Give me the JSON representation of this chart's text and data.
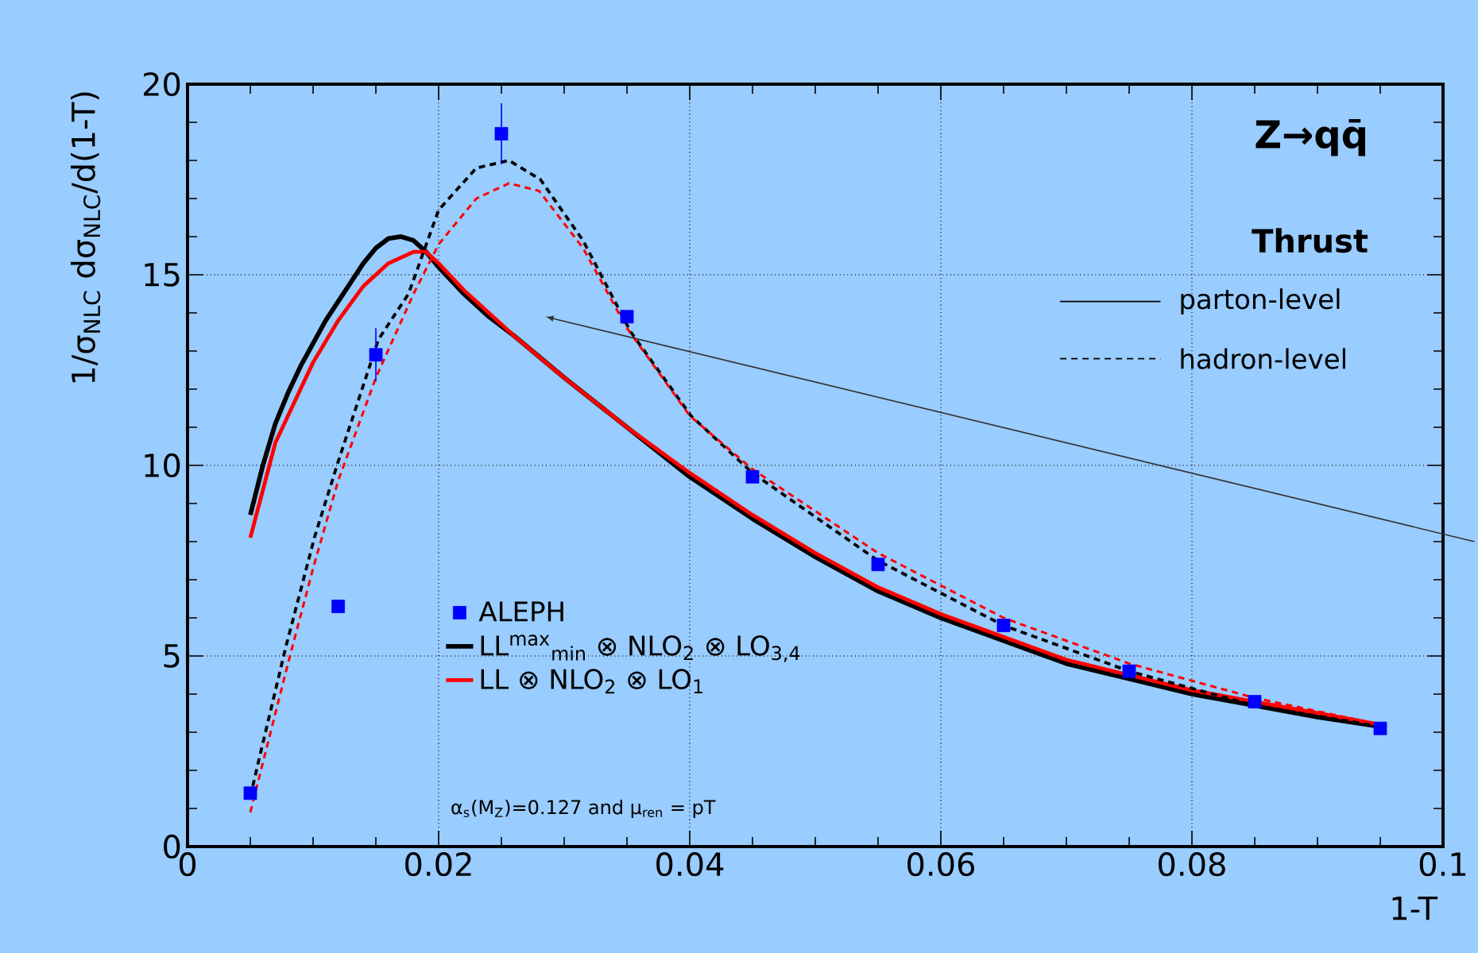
{
  "chart_data": {
    "type": "line",
    "title": "Z→qq̄",
    "subtitle": "Thrust",
    "xlabel": "1-T",
    "ylabel": "1/σ$_{NLC}$ dσ$_{NLC}$/d(1-T)",
    "xlim": [
      0,
      0.1
    ],
    "ylim": [
      0,
      20
    ],
    "xticks": [
      0,
      0.02,
      0.04,
      0.06,
      0.08,
      0.1
    ],
    "yticks": [
      0,
      5,
      10,
      15,
      20
    ],
    "grid": true,
    "legend": "bottom left",
    "annotations": [
      "parton-level",
      "hadron-level",
      "α$_{s}$(M$_{Z}$)=0.127 and μ$_{ren}$ = pT"
    ],
    "series": [
      {
        "name": "ALEPH",
        "type": "scatter",
        "marker": "square",
        "color": "#0000ff",
        "x": [
          0.005,
          0.012,
          0.015,
          0.025,
          0.035,
          0.045,
          0.055,
          0.065,
          0.075,
          0.085,
          0.095
        ],
        "values": [
          1.4,
          6.3,
          12.9,
          18.7,
          13.9,
          9.7,
          7.4,
          5.8,
          4.6,
          3.8,
          3.1
        ],
        "errors": [
          null,
          null,
          0.7,
          0.8,
          null,
          null,
          null,
          null,
          null,
          null,
          null
        ]
      },
      {
        "name": "LL$^{max}$$_{min}$ ⊗ NLO$_{2}$ ⊗ LO$_{3,4}$",
        "line_style": "solid",
        "color": "#000000",
        "x": [
          0.005,
          0.006,
          0.007,
          0.008,
          0.009,
          0.01,
          0.011,
          0.012,
          0.013,
          0.014,
          0.015,
          0.016,
          0.017,
          0.018,
          0.019,
          0.02,
          0.022,
          0.024,
          0.026,
          0.03,
          0.035,
          0.04,
          0.045,
          0.05,
          0.055,
          0.06,
          0.065,
          0.07,
          0.075,
          0.08,
          0.085,
          0.09,
          0.095
        ],
        "values": [
          8.7,
          10.0,
          11.1,
          11.9,
          12.6,
          13.2,
          13.8,
          14.3,
          14.8,
          15.3,
          15.7,
          15.95,
          16.0,
          15.9,
          15.6,
          15.2,
          14.5,
          13.9,
          13.4,
          12.3,
          11.0,
          9.7,
          8.6,
          7.6,
          6.7,
          6.0,
          5.4,
          4.8,
          4.4,
          4.0,
          3.7,
          3.4,
          3.15
        ]
      },
      {
        "name": "LL ⊗ NLO$_{2}$ ⊗ LO$_{1}$",
        "line_style": "solid",
        "color": "#ff0000",
        "x": [
          0.005,
          0.007,
          0.01,
          0.012,
          0.014,
          0.016,
          0.018,
          0.019,
          0.02,
          0.022,
          0.024,
          0.026,
          0.03,
          0.035,
          0.04,
          0.045,
          0.05,
          0.055,
          0.06,
          0.065,
          0.07,
          0.075,
          0.08,
          0.085,
          0.09,
          0.095
        ],
        "values": [
          8.1,
          10.6,
          12.7,
          13.8,
          14.7,
          15.3,
          15.6,
          15.6,
          15.3,
          14.6,
          14.0,
          13.4,
          12.3,
          11.0,
          9.8,
          8.7,
          7.7,
          6.8,
          6.1,
          5.5,
          4.9,
          4.5,
          4.1,
          3.8,
          3.5,
          3.2
        ]
      },
      {
        "line_style": "dashed",
        "color": "#000000",
        "x": [
          0.005,
          0.0057,
          0.0078,
          0.0101,
          0.012,
          0.0152,
          0.0176,
          0.02,
          0.023,
          0.0256,
          0.0281,
          0.0315,
          0.0353,
          0.0401,
          0.045,
          0.055,
          0.065,
          0.075,
          0.085,
          0.095
        ],
        "values": [
          1.3,
          2.3,
          5.2,
          8.1,
          10.1,
          13.3,
          14.5,
          16.7,
          17.8,
          18.0,
          17.5,
          15.9,
          13.5,
          11.3,
          9.8,
          7.5,
          5.8,
          4.6,
          3.7,
          3.15
        ]
      },
      {
        "line_style": "dashed",
        "color": "#ff0000",
        "x": [
          0.005,
          0.006,
          0.008,
          0.01,
          0.012,
          0.015,
          0.018,
          0.02,
          0.023,
          0.0256,
          0.028,
          0.0315,
          0.035,
          0.04,
          0.045,
          0.055,
          0.065,
          0.075,
          0.085,
          0.095
        ],
        "values": [
          0.9,
          2.2,
          4.8,
          7.3,
          9.6,
          12.3,
          14.5,
          15.8,
          17.0,
          17.4,
          17.2,
          15.7,
          13.6,
          11.3,
          9.9,
          7.7,
          6.0,
          4.8,
          3.9,
          3.2
        ]
      }
    ]
  }
}
